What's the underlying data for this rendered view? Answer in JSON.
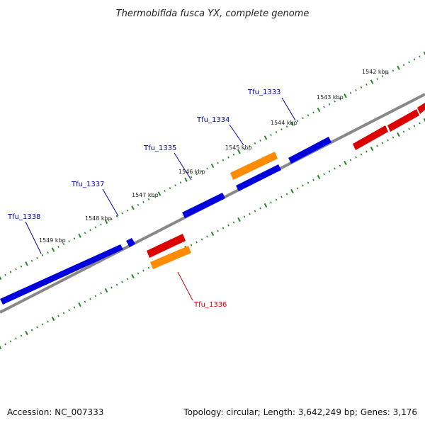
{
  "title": "Thermobifida fusca YX, complete genome",
  "footer": {
    "accession": "Accession: NC_007333",
    "info": "Topology: circular; Length: 3,642,249 bp; Genes: 3,176"
  },
  "colors": {
    "forward": "#0000dd",
    "reverse": "#dd0000",
    "rna": "#ff8c00",
    "backbone": "#888888",
    "ticks": "#228822",
    "label_forward": "#0000aa",
    "label_reverse": "#cc0000"
  },
  "scale_ticks": [
    {
      "label": "1542 kbp"
    },
    {
      "label": "1543 kbp"
    },
    {
      "label": "1544 kbp"
    },
    {
      "label": "1545 kbp"
    },
    {
      "label": "1546 kbp"
    },
    {
      "label": "1547 kbp"
    },
    {
      "label": "1548 kbp"
    },
    {
      "label": "1549 kbp"
    }
  ],
  "gene_labels": [
    {
      "name": "Tfu_1333",
      "strand": "forward"
    },
    {
      "name": "Tfu_1334",
      "strand": "forward"
    },
    {
      "name": "Tfu_1335",
      "strand": "forward"
    },
    {
      "name": "Tfu_1337",
      "strand": "forward"
    },
    {
      "name": "Tfu_1338",
      "strand": "forward"
    },
    {
      "name": "Tfu_1336",
      "strand": "reverse"
    }
  ]
}
